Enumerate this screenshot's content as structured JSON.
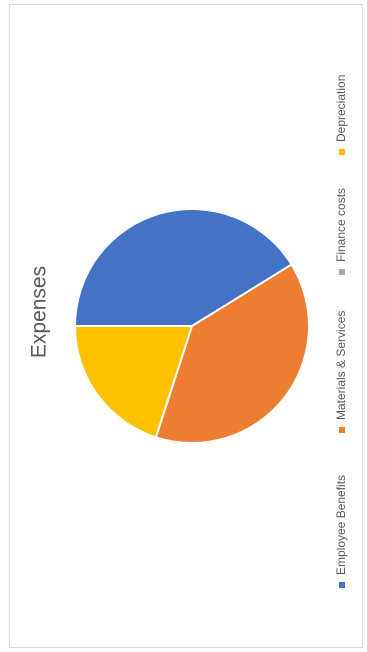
{
  "chart_data": {
    "type": "pie",
    "title": "Expenses",
    "legend_position": "bottom",
    "orientation": "rotated-90-clockwise",
    "categories": [
      "Employee Benefits",
      "Materials & Services",
      "Finance costs",
      "Depreciation"
    ],
    "values": [
      41.2,
      38.8,
      0,
      20.0
    ],
    "colors": [
      "#4472c4",
      "#ed7d31",
      "#a5a5a5",
      "#ffc000"
    ]
  }
}
